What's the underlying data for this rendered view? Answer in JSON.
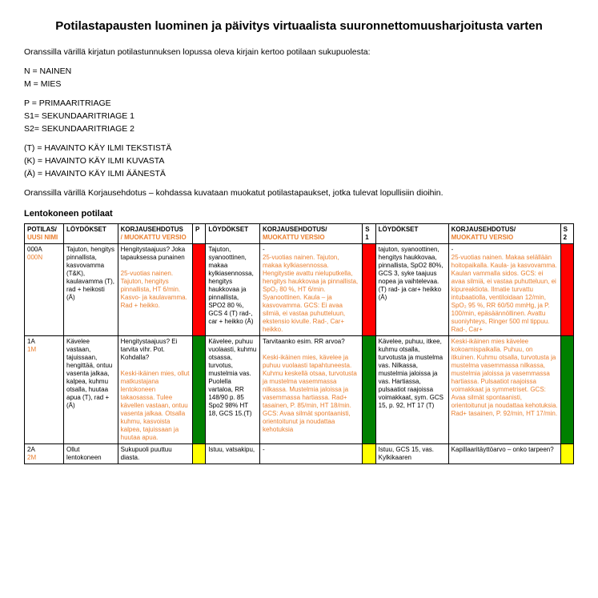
{
  "title": "Potilastapausten luominen ja päivitys virtuaalista suuronnettomuusharjoitusta varten",
  "intro": {
    "line1": "Oranssilla värillä kirjatun potilastunnuksen lopussa oleva kirjain kertoo potilaan sukupuolesta:",
    "n": "N = NAINEN",
    "m": "M = MIES",
    "p": "P = PRIMAARITRIAGE",
    "s1": "S1= SEKUNDAARITRIAGE 1",
    "s2": "S2= SEKUNDAARITRIAGE 2",
    "t": "(T) = HAVAINTO KÄY ILMI TEKSTISTÄ",
    "k": "(K) = HAVAINTO KÄY ILMI KUVASTA",
    "a": "(Ä) = HAVAINTO KÄY ILMI ÄÄNESTÄ",
    "line2": "Oranssilla värillä Korjausehdotus – kohdassa kuvataan muokatut potilastapaukset, jotka tulevat lopullisiin dioihin."
  },
  "section": "Lentokoneen potilaat",
  "headers": {
    "h1a": "POTILAS/",
    "h1b": "UUSI NIMI",
    "h2": "LÖYDÖKSET",
    "h3a": "KORJAUSEHDOTUS",
    "h3b": "/ MUOKATTU VERSIO",
    "h4": "P",
    "h5": "LÖYDÖKSET",
    "h6a": "KORJAUSEHDOTUS/",
    "h6b": "MUOKATTU VERSIO",
    "h7": "S1",
    "h8": "LÖYDÖKSET",
    "h9a": "KORJAUSEHDOTUS/",
    "h9b": "MUOKATTU VERSIO",
    "h10": "S2"
  },
  "r1": {
    "id_a": "000A",
    "id_b": "000N",
    "loy1": "Tajuton, hengitys pinnallista, kasvovamma (T&K), kaulavamma (T), rad + heikosti (Ä)",
    "korj1a": "Hengitystaajuus? Joka tapauksessa punainen",
    "korj1b": "25-vuotias nainen. Tajuton, hengitys pinnallista, HT 6/min. Kasvo- ja kaulavamma. Rad + heikko.",
    "loy2": "Tajuton, syanoottinen, makaa kylkiasennossa, hengitys haukkovaa ja pinnallista, SPO2 80 %, GCS 4 (T) rad-, car + heikko (Ä)",
    "korj2a": "-",
    "korj2b": "25-vuotias nainen. Tajuton, makaa kylkiasennossa. Hengitystie avattu nieluputkella, hengitys haukkovaa ja pinnallista, SpO₂ 80 %, HT 6/min. Syanoottinen. Kaula – ja kasvovamma. GCS: Ei avaa silmiä, ei vastaa puhutteluun, ekstensio kivulle. Rad-, Car+ heikko.",
    "loy3": "tajuton, syanoottinen, hengitys haukkovaa, pinnallista, SpO2 80%, GCS 3, syke taajuus nopea ja vaihtelevaa. (T) rad- ja car+ heikko (Ä)",
    "korj3a": "-",
    "korj3b": "25-vuotias nainen. Makaa selällään hoitopaikalla. Kaula- ja kasvovamma. Kaulan vammalla sidos. GCS: ei avaa silmiä, ei vastaa puhutteluun, ei kipureaktiota. Ilmatie turvattu intubaatiolla, ventiloidaan 12/min, SpO₂ 95 %, RR 60/50 mmHg, ja P. 100/min, epäsäännöllinen. Avattu suoniyhteys, Ringer 500 ml tippuu. Rad-, Car+"
  },
  "r2": {
    "id_a": "1A",
    "id_b": "1M",
    "loy1": "Kävelee vastaan, tajuissaan, hengittää, ontuu vasenta jalkaa, kalpea, kuhmu otsalla, huutaa apua (T), rad + (Ä)",
    "korj1a": "Hengitystaajuus? Ei tarvita vihr. Pot. Kohdalla?",
    "korj1b": "Keski-ikäinen mies, ollut matkustajana lentokoneen takaosassa. Tulee kävellen vastaan, ontuu vasenta jalkaa. Otsalla kuhmu, kasvoista kalpea, tajuissaan ja huutaa apua.",
    "loy2": "Kävelee, puhuu vuolaasti, kuhmu otsassa, turvotus, mustelmia vas. Puolella vartaloa, RR 148/90 p. 85 Spo2 98% HT 18, GCS 15.(T)",
    "korj2a": "Tarvitaanko esim. RR arvoa?",
    "korj2b": "Keski-ikäinen mies, kävelee ja puhuu vuolaasti tapahtuneesta. Kuhmu keskellä otsaa, turvotusta ja mustelma vasemmassa nilkassa. Mustelmia jaloissa ja vasemmassa hartiassa. Rad+ tasainen, P. 85/min, HT 18/min. GCS: Avaa silmät spontaanisti, orientoitunut ja noudattaa kehotuksia",
    "loy3": "Kävelee, puhuu, itkee, kuhmu otsalla, turvotusta ja mustelma vas. Nilkassa, mustelmia jaloissa ja vas. Hartiassa, pulsaatiot raajoissa voimakkaat, sym. GCS 15, p. 92, HT 17 (T)",
    "korj3b": "Keski-ikäinen mies kävelee kokoamispaikalla. Puhuu, on itkuinen. Kuhmu otsalla, turvotusta ja mustelma vasemmassa nilkassa, mustelmia jaloissa ja vasemmassa hartiassa. Pulsaatiot raajoissa voimakkaat ja symmetriset. GCS: Avaa silmät spontaanisti, orientoitunut ja noudattaa kehotuksia. Rad+ tasainen, P. 92/min, HT 17/min."
  },
  "r3": {
    "id_a": "2A",
    "id_b": "2M",
    "loy1": "Ollut lentokoneen",
    "korj1a": "Sukupuoli puuttuu diasta.",
    "loy2": "Istuu, vatsakipu,",
    "korj2a": "-",
    "loy3": "Istuu, GCS 15, vas. Kylkikaaren",
    "korj3a": "Kapillaaritäyttöarvo – onko tarpeen?"
  }
}
